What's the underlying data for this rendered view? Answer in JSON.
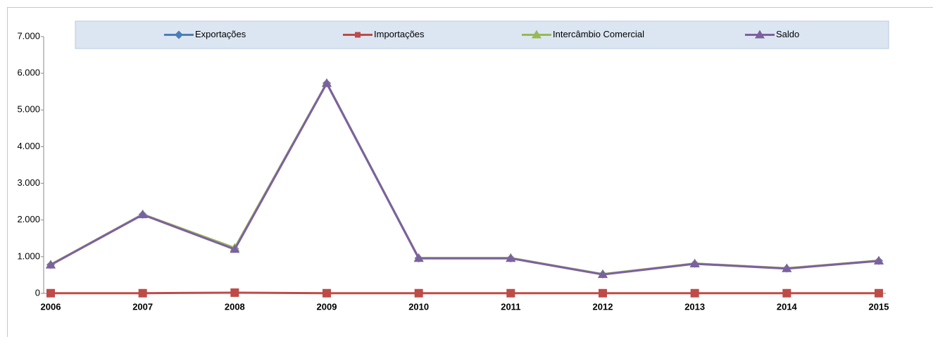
{
  "chart_data": {
    "type": "line",
    "categories": [
      "2006",
      "2007",
      "2008",
      "2009",
      "2010",
      "2011",
      "2012",
      "2013",
      "2014",
      "2015"
    ],
    "series": [
      {
        "name": "Exportações",
        "color": "#4a7ebb",
        "marker": "diamond",
        "values": [
          780,
          2150,
          1220,
          5730,
          960,
          960,
          520,
          810,
          680,
          890
        ]
      },
      {
        "name": "Importações",
        "color": "#be4b48",
        "marker": "square",
        "values": [
          5,
          5,
          20,
          5,
          5,
          5,
          5,
          5,
          5,
          5
        ]
      },
      {
        "name": "Intercâmbio Comercial",
        "color": "#98b954",
        "marker": "triangle",
        "values": [
          785,
          2155,
          1240,
          5735,
          965,
          965,
          525,
          815,
          685,
          895
        ]
      },
      {
        "name": "Saldo",
        "color": "#7d60a0",
        "marker": "triangle",
        "values": [
          775,
          2145,
          1200,
          5725,
          955,
          955,
          515,
          805,
          675,
          885
        ]
      }
    ],
    "ylim": [
      0,
      7000
    ],
    "yticks": [
      0,
      {
        "value": 1000,
        "label": "1.000"
      },
      {
        "value": 2000,
        "label": "2.000"
      },
      {
        "value": 3000,
        "label": "3.000"
      },
      {
        "value": 4000,
        "label": "4.000"
      },
      {
        "value": 5000,
        "label": "5.000"
      },
      {
        "value": 6000,
        "label": "6.000"
      },
      {
        "value": 7000,
        "label": "7.000"
      }
    ],
    "grid": false,
    "legend": "top"
  }
}
